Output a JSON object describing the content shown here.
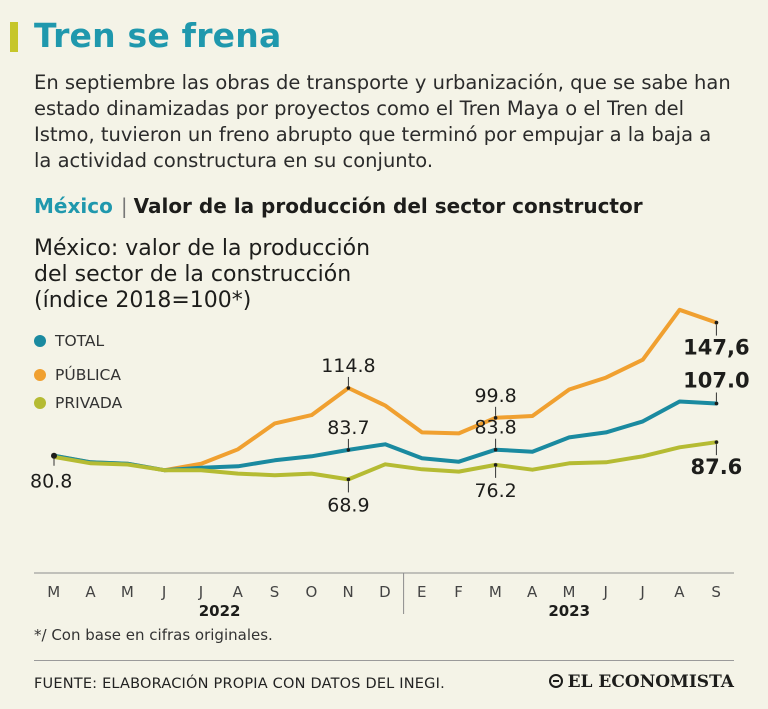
{
  "header": {
    "title": "Tren se frena",
    "intro": "En septiembre las obras de transporte y urbanización, que se sabe han estado dinamizadas por proyectos como el Tren Maya o el Tren del Istmo, tuvieron un freno abrupto que terminó por empujar a la baja a la actividad constructura en su conjunto."
  },
  "section": {
    "country": "México",
    "separator": "|",
    "subject": "Valor de la producción del sector constructor"
  },
  "chart_title": {
    "line1": "México: valor de la producción",
    "line2": "del sector de la construcción",
    "line3": "(índice 2018=100*)"
  },
  "legend": {
    "total": "TOTAL",
    "publica": "PÚBLICA",
    "privada": "PRIVADA"
  },
  "colors": {
    "total": "#1a8aa0",
    "publica": "#f0a030",
    "privada": "#b5bb33",
    "title": "#1f98ad",
    "title_bar": "#c6c62a"
  },
  "chart_data": {
    "type": "line",
    "title": "México: valor de la producción del sector de la construcción (índice 2018=100*)",
    "months": [
      "M",
      "A",
      "M",
      "J",
      "J",
      "A",
      "S",
      "O",
      "N",
      "D",
      "E",
      "F",
      "M",
      "A",
      "M",
      "J",
      "J",
      "A",
      "S"
    ],
    "years": [
      {
        "label": "2022",
        "start": 0,
        "end": 9
      },
      {
        "label": "2023",
        "start": 10,
        "end": 18
      }
    ],
    "ylim": [
      40,
      175
    ],
    "series": [
      {
        "key": "publica",
        "name": "PÚBLICA",
        "values": [
          80.8,
          77.5,
          76.8,
          73.5,
          76.8,
          84.0,
          97.0,
          101.2,
          114.8,
          106.0,
          92.5,
          92.0,
          99.8,
          100.7,
          114.0,
          120.0,
          129.0,
          154.0,
          147.6
        ]
      },
      {
        "key": "total",
        "name": "TOTAL",
        "values": [
          80.8,
          77.5,
          76.8,
          73.5,
          74.8,
          75.5,
          78.5,
          80.5,
          83.7,
          86.5,
          79.5,
          77.8,
          83.8,
          82.8,
          90.0,
          92.5,
          98.0,
          108.0,
          107.0
        ]
      },
      {
        "key": "privada",
        "name": "PRIVADA",
        "values": [
          80.2,
          77.0,
          76.4,
          73.5,
          73.5,
          71.8,
          71.0,
          71.8,
          68.9,
          76.5,
          74.0,
          72.8,
          76.2,
          73.8,
          77.0,
          77.5,
          80.5,
          85.0,
          87.6
        ]
      }
    ],
    "annotations": [
      {
        "text": "80.8",
        "series": "publica",
        "index": 0,
        "pos": "below-left",
        "bold": false
      },
      {
        "text": "114.8",
        "series": "publica",
        "index": 8,
        "pos": "above",
        "bold": false
      },
      {
        "text": "83.7",
        "series": "total",
        "index": 8,
        "pos": "above",
        "bold": false
      },
      {
        "text": "68.9",
        "series": "privada",
        "index": 8,
        "pos": "below",
        "bold": false
      },
      {
        "text": "99.8",
        "series": "publica",
        "index": 12,
        "pos": "above",
        "bold": false
      },
      {
        "text": "83.8",
        "series": "total",
        "index": 12,
        "pos": "above",
        "bold": false
      },
      {
        "text": "76.2",
        "series": "privada",
        "index": 12,
        "pos": "below",
        "bold": false
      },
      {
        "text": "147,6",
        "series": "publica",
        "index": 18,
        "pos": "below",
        "bold": true
      },
      {
        "text": "107.0",
        "series": "total",
        "index": 18,
        "pos": "above",
        "bold": true
      },
      {
        "text": "87.6",
        "series": "privada",
        "index": 18,
        "pos": "below",
        "bold": true
      }
    ]
  },
  "footnote": "*/ Con base en cifras originales.",
  "source": "FUENTE: ELABORACIÓN PROPIA CON DATOS DEL INEGI.",
  "brand": "EL ECONOMISTA"
}
